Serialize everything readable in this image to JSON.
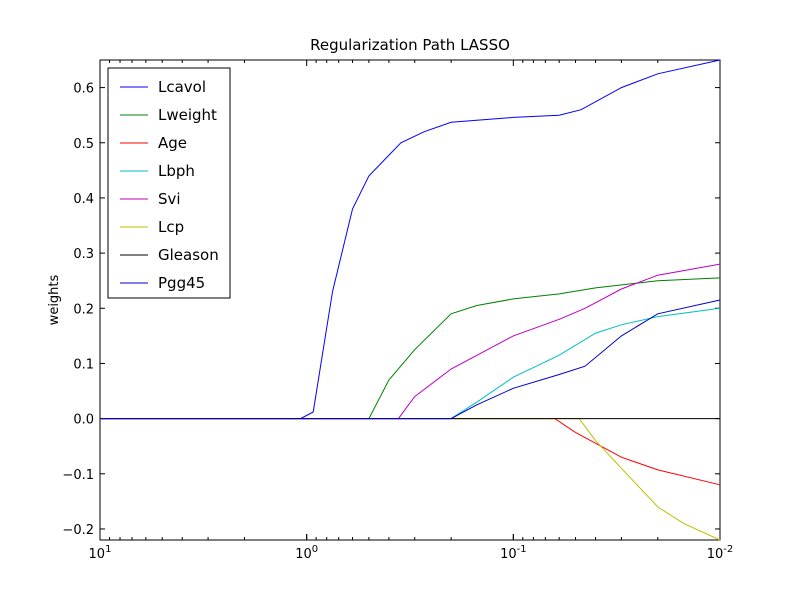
{
  "chart_data": {
    "type": "line",
    "title": "Regularization Path LASSO",
    "xlabel": "",
    "ylabel": "weights",
    "xscale": "log-reversed",
    "xlim": [
      10,
      0.01
    ],
    "ylim": [
      -0.22,
      0.65
    ],
    "x_ticks": [
      {
        "base": "10",
        "exp": "1"
      },
      {
        "base": "10",
        "exp": "0"
      },
      {
        "base": "10",
        "exp": "-1"
      },
      {
        "base": "10",
        "exp": "-2"
      }
    ],
    "y_ticks": [
      "0.6",
      "0.5",
      "0.4",
      "0.3",
      "0.2",
      "0.1",
      "0.0",
      "−0.1",
      "−0.2"
    ],
    "legend_position": "top-left",
    "zero_line": true,
    "series": [
      {
        "name": "Lcavol",
        "color": "#0000ff",
        "points": [
          [
            10,
            0
          ],
          [
            1.07,
            0
          ],
          [
            0.93,
            0.012
          ],
          [
            0.75,
            0.23
          ],
          [
            0.6,
            0.38
          ],
          [
            0.5,
            0.44
          ],
          [
            0.35,
            0.5
          ],
          [
            0.27,
            0.52
          ],
          [
            0.2,
            0.537
          ],
          [
            0.1,
            0.546
          ],
          [
            0.06,
            0.55
          ],
          [
            0.047,
            0.56
          ],
          [
            0.03,
            0.6
          ],
          [
            0.02,
            0.625
          ],
          [
            0.01,
            0.65
          ]
        ]
      },
      {
        "name": "Lweight",
        "color": "#008000",
        "points": [
          [
            10,
            0
          ],
          [
            0.5,
            0
          ],
          [
            0.4,
            0.07
          ],
          [
            0.3,
            0.125
          ],
          [
            0.2,
            0.19
          ],
          [
            0.15,
            0.205
          ],
          [
            0.1,
            0.217
          ],
          [
            0.06,
            0.226
          ],
          [
            0.04,
            0.237
          ],
          [
            0.02,
            0.25
          ],
          [
            0.01,
            0.255
          ]
        ]
      },
      {
        "name": "Age",
        "color": "#ff0000",
        "points": [
          [
            10,
            0
          ],
          [
            0.063,
            0
          ],
          [
            0.05,
            -0.025
          ],
          [
            0.03,
            -0.07
          ],
          [
            0.02,
            -0.093
          ],
          [
            0.01,
            -0.12
          ]
        ]
      },
      {
        "name": "Lbph",
        "color": "#00bfbf",
        "points": [
          [
            10,
            0
          ],
          [
            0.2,
            0
          ],
          [
            0.15,
            0.03
          ],
          [
            0.1,
            0.075
          ],
          [
            0.06,
            0.115
          ],
          [
            0.04,
            0.155
          ],
          [
            0.03,
            0.17
          ],
          [
            0.02,
            0.185
          ],
          [
            0.01,
            0.2
          ]
        ]
      },
      {
        "name": "Svi",
        "color": "#bf00bf",
        "points": [
          [
            10,
            0
          ],
          [
            0.36,
            0
          ],
          [
            0.3,
            0.04
          ],
          [
            0.2,
            0.09
          ],
          [
            0.1,
            0.15
          ],
          [
            0.06,
            0.18
          ],
          [
            0.045,
            0.2
          ],
          [
            0.03,
            0.235
          ],
          [
            0.02,
            0.26
          ],
          [
            0.01,
            0.28
          ]
        ]
      },
      {
        "name": "Lcp",
        "color": "#bfbf00",
        "points": [
          [
            10,
            0
          ],
          [
            0.048,
            0
          ],
          [
            0.04,
            -0.04
          ],
          [
            0.03,
            -0.09
          ],
          [
            0.02,
            -0.16
          ],
          [
            0.015,
            -0.19
          ],
          [
            0.01,
            -0.22
          ]
        ]
      },
      {
        "name": "Gleason",
        "color": "#000000",
        "points": [
          [
            10,
            0
          ],
          [
            0.01,
            0
          ]
        ]
      },
      {
        "name": "Pgg45",
        "color": "#0000cd",
        "points": [
          [
            10,
            0
          ],
          [
            0.2,
            0
          ],
          [
            0.15,
            0.025
          ],
          [
            0.1,
            0.055
          ],
          [
            0.06,
            0.08
          ],
          [
            0.045,
            0.095
          ],
          [
            0.03,
            0.15
          ],
          [
            0.02,
            0.19
          ],
          [
            0.01,
            0.215
          ]
        ]
      }
    ]
  }
}
